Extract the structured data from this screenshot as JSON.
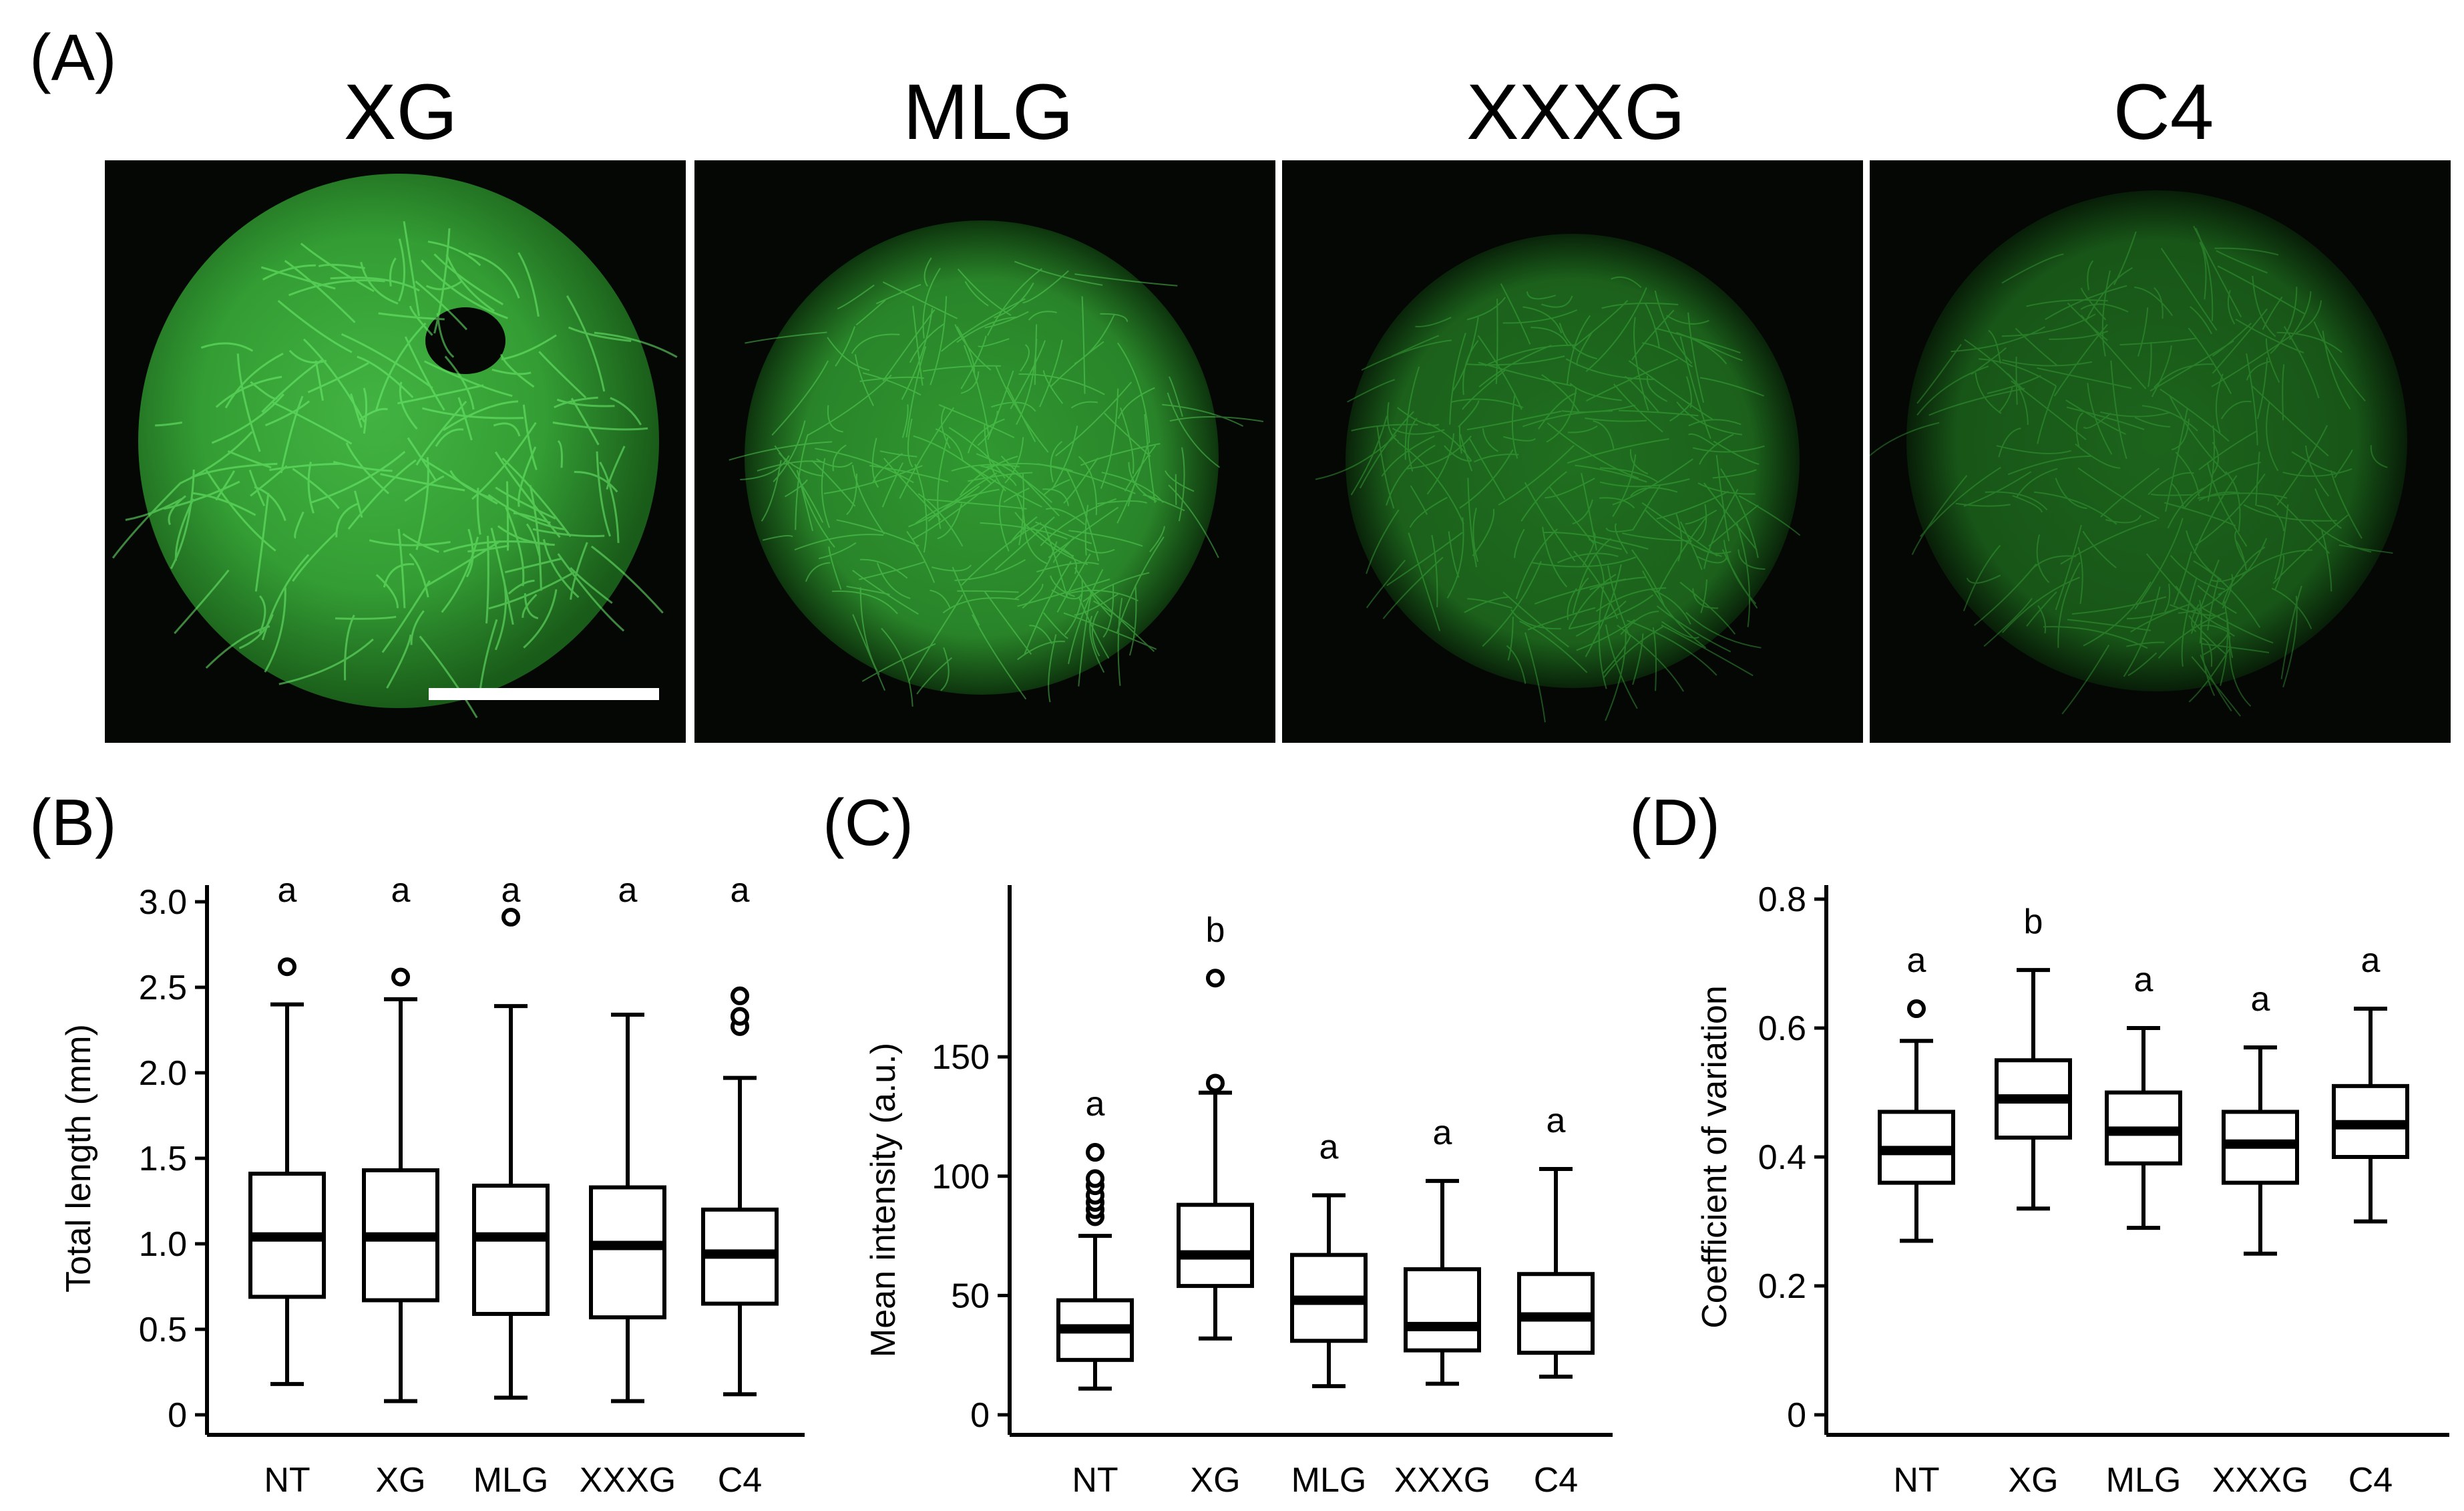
{
  "panel_a": {
    "label": "(A)",
    "images": [
      {
        "title": "XG"
      },
      {
        "title": "MLG"
      },
      {
        "title": "XXXG"
      },
      {
        "title": "C4"
      }
    ]
  },
  "chart_data": [
    {
      "panel": "(B)",
      "type": "box",
      "ylabel": "Total length (mm)",
      "ylim": [
        0,
        3.0
      ],
      "yticks": [
        "0",
        "0.5",
        "1.0",
        "1.5",
        "2.0",
        "2.5",
        "3.0"
      ],
      "categories": [
        "NT",
        "XG",
        "MLG",
        "XXXG",
        "C4"
      ],
      "significance": [
        "a",
        "a",
        "a",
        "a",
        "a"
      ],
      "boxes": [
        {
          "min": 0.18,
          "q1": 0.69,
          "median": 1.04,
          "q3": 1.41,
          "max": 2.4,
          "outliers": [
            2.62
          ]
        },
        {
          "min": 0.08,
          "q1": 0.67,
          "median": 1.04,
          "q3": 1.43,
          "max": 2.43,
          "outliers": [
            2.56
          ]
        },
        {
          "min": 0.1,
          "q1": 0.59,
          "median": 1.04,
          "q3": 1.34,
          "max": 2.39,
          "outliers": [
            2.91
          ]
        },
        {
          "min": 0.08,
          "q1": 0.57,
          "median": 0.99,
          "q3": 1.33,
          "max": 2.34,
          "outliers": []
        },
        {
          "min": 0.12,
          "q1": 0.65,
          "median": 0.94,
          "q3": 1.2,
          "max": 1.97,
          "outliers": [
            2.27,
            2.33,
            2.45
          ]
        }
      ]
    },
    {
      "panel": "(C)",
      "type": "box",
      "ylabel": "Mean intensity (a.u.)",
      "ylim": [
        0,
        180
      ],
      "yticks": [
        "0",
        "50",
        "100",
        "150"
      ],
      "categories": [
        "NT",
        "XG",
        "MLG",
        "XXXG",
        "C4"
      ],
      "significance": [
        "a",
        "b",
        "a",
        "a",
        "a"
      ],
      "boxes": [
        {
          "min": 11,
          "q1": 23,
          "median": 36,
          "q3": 48,
          "max": 75,
          "outliers": [
            83,
            86,
            89,
            92,
            96,
            99,
            110
          ]
        },
        {
          "min": 32,
          "q1": 54,
          "median": 67,
          "q3": 88,
          "max": 135,
          "outliers": [
            139,
            183
          ]
        },
        {
          "min": 12,
          "q1": 31,
          "median": 48,
          "q3": 67,
          "max": 92,
          "outliers": []
        },
        {
          "min": 13,
          "q1": 27,
          "median": 37,
          "q3": 61,
          "max": 98,
          "outliers": []
        },
        {
          "min": 16,
          "q1": 26,
          "median": 41,
          "q3": 59,
          "max": 103,
          "outliers": []
        }
      ]
    },
    {
      "panel": "(D)",
      "type": "box",
      "ylabel": "Coefficient of variation",
      "ylim": [
        0,
        0.8
      ],
      "yticks": [
        "0",
        "0.2",
        "0.4",
        "0.6",
        "0.8"
      ],
      "categories": [
        "NT",
        "XG",
        "MLG",
        "XXXG",
        "C4"
      ],
      "significance": [
        "a",
        "b",
        "a",
        "a",
        "a"
      ],
      "boxes": [
        {
          "min": 0.27,
          "q1": 0.36,
          "median": 0.41,
          "q3": 0.47,
          "max": 0.58,
          "outliers": [
            0.63
          ]
        },
        {
          "min": 0.32,
          "q1": 0.43,
          "median": 0.49,
          "q3": 0.55,
          "max": 0.69,
          "outliers": []
        },
        {
          "min": 0.29,
          "q1": 0.39,
          "median": 0.44,
          "q3": 0.5,
          "max": 0.6,
          "outliers": []
        },
        {
          "min": 0.25,
          "q1": 0.36,
          "median": 0.42,
          "q3": 0.47,
          "max": 0.57,
          "outliers": []
        },
        {
          "min": 0.3,
          "q1": 0.4,
          "median": 0.45,
          "q3": 0.51,
          "max": 0.63,
          "outliers": []
        }
      ]
    }
  ]
}
